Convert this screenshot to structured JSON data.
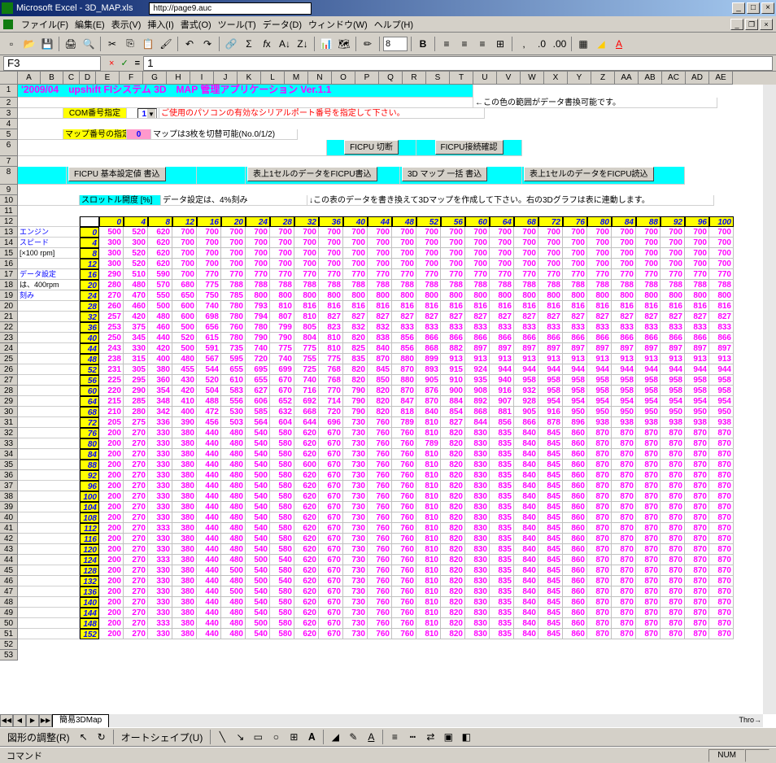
{
  "titlebar": {
    "app": "Microsoft Excel - 3D_MAP.xls",
    "url": "http://page9.auc"
  },
  "menubar": {
    "items": [
      "ファイル(F)",
      "編集(E)",
      "表示(V)",
      "挿入(I)",
      "書式(O)",
      "ツール(T)",
      "データ(D)",
      "ウィンドウ(W)",
      "ヘルプ(H)"
    ]
  },
  "formula": {
    "cell_ref": "F3",
    "value": "1"
  },
  "font_size": "8",
  "columns": [
    "A",
    "B",
    "C",
    "D",
    "E",
    "F",
    "G",
    "H",
    "I",
    "J",
    "K",
    "L",
    "M",
    "N",
    "O",
    "P",
    "Q",
    "R",
    "S",
    "T",
    "U",
    "V",
    "W",
    "X",
    "Y",
    "Z",
    "AA",
    "AB",
    "AC",
    "AD",
    "AE"
  ],
  "title_row": "'2009/04　upshift FIシステム 3D　MAP 管理アプリケーション Ver.1.1",
  "settings": {
    "com_label": "COM番号指定",
    "com_value": "1",
    "com_note": "ご使用のパソコンの有効なシリアルポート番号を指定して下さい。",
    "right_note": "←この色の範囲がデータ書換可能です。",
    "map_label": "マップ番号の指定",
    "map_value": "0",
    "map_note": "マップは3枚を切替可能(No.0/1/2)"
  },
  "buttons": {
    "cpu_disconnect": "FICPU 切断",
    "cpu_connect": "FICPU接続確認",
    "basic_write": "FICPU 基本設定値 書込",
    "cell_write": "表上1セルのデータをFICPU書込",
    "map_write": "3D マップ 一括 書込",
    "cell_read": "表上1セルのデータをFICPU読込"
  },
  "throttle_label": "スロットル開度 [%]",
  "data_note": "データ設定は、4%刻み",
  "table_note": "↓この表のデータを書き換えて3Dマップを作成して下さい。右の3Dグラフは表に連動します。",
  "throttle_header": "Thro→",
  "side_labels": [
    "エンジン",
    "スピード",
    "[×100 rpm]",
    "",
    "データ設定",
    "は、400rpm",
    "刻み"
  ],
  "col_widths": {
    "row_header": 22,
    "ab": 48,
    "d": 16,
    "data": 25
  },
  "throttle_values": [
    0,
    4,
    8,
    12,
    16,
    20,
    24,
    28,
    32,
    36,
    40,
    44,
    48,
    52,
    56,
    60,
    64,
    68,
    72,
    76,
    80,
    84,
    88,
    92,
    96,
    100
  ],
  "rpm_values": [
    0,
    4,
    8,
    12,
    16,
    20,
    24,
    28,
    32,
    36,
    40,
    44,
    48,
    52,
    56,
    60,
    64,
    68,
    72,
    76,
    80,
    84,
    88,
    92,
    96,
    100,
    104,
    108,
    112,
    116,
    120,
    124,
    128,
    132,
    136,
    140,
    144,
    148,
    152
  ],
  "data_rows": [
    [
      500,
      520,
      620,
      700,
      700,
      700,
      700,
      700,
      700,
      700,
      700,
      700,
      700,
      700,
      700,
      700,
      700,
      700,
      700,
      700,
      700,
      700,
      700,
      700,
      700,
      700
    ],
    [
      300,
      300,
      620,
      700,
      700,
      700,
      700,
      700,
      700,
      700,
      700,
      700,
      700,
      700,
      700,
      700,
      700,
      700,
      700,
      700,
      700,
      700,
      700,
      700,
      700,
      700
    ],
    [
      300,
      520,
      620,
      700,
      700,
      700,
      700,
      700,
      700,
      700,
      700,
      700,
      700,
      700,
      700,
      700,
      700,
      700,
      700,
      700,
      700,
      700,
      700,
      700,
      700,
      700
    ],
    [
      300,
      520,
      620,
      700,
      700,
      700,
      700,
      700,
      700,
      700,
      700,
      700,
      700,
      700,
      700,
      700,
      700,
      700,
      700,
      700,
      700,
      700,
      700,
      700,
      700,
      700
    ],
    [
      290,
      510,
      590,
      700,
      770,
      770,
      770,
      770,
      770,
      770,
      770,
      770,
      770,
      770,
      770,
      770,
      770,
      770,
      770,
      770,
      770,
      770,
      770,
      770,
      770,
      770
    ],
    [
      280,
      480,
      570,
      680,
      775,
      788,
      788,
      788,
      788,
      788,
      788,
      788,
      788,
      788,
      788,
      788,
      788,
      788,
      788,
      788,
      788,
      788,
      788,
      788,
      788,
      788
    ],
    [
      270,
      470,
      550,
      650,
      750,
      785,
      800,
      800,
      800,
      800,
      800,
      800,
      800,
      800,
      800,
      800,
      800,
      800,
      800,
      800,
      800,
      800,
      800,
      800,
      800,
      800
    ],
    [
      260,
      460,
      500,
      600,
      740,
      780,
      793,
      810,
      816,
      816,
      816,
      816,
      816,
      816,
      816,
      816,
      816,
      816,
      816,
      816,
      816,
      816,
      816,
      816,
      816,
      816
    ],
    [
      257,
      420,
      480,
      600,
      698,
      780,
      794,
      807,
      810,
      827,
      827,
      827,
      827,
      827,
      827,
      827,
      827,
      827,
      827,
      827,
      827,
      827,
      827,
      827,
      827,
      827
    ],
    [
      253,
      375,
      460,
      500,
      656,
      760,
      780,
      799,
      805,
      823,
      832,
      832,
      833,
      833,
      833,
      833,
      833,
      833,
      833,
      833,
      833,
      833,
      833,
      833,
      833,
      833
    ],
    [
      250,
      345,
      440,
      520,
      615,
      780,
      790,
      790,
      804,
      810,
      820,
      838,
      856,
      866,
      866,
      866,
      866,
      866,
      866,
      866,
      866,
      866,
      866,
      866,
      866,
      866
    ],
    [
      243,
      330,
      420,
      500,
      591,
      735,
      740,
      775,
      775,
      810,
      825,
      840,
      856,
      868,
      882,
      897,
      897,
      897,
      897,
      897,
      897,
      897,
      897,
      897,
      897,
      897
    ],
    [
      238,
      315,
      400,
      480,
      567,
      595,
      720,
      740,
      755,
      775,
      835,
      870,
      880,
      899,
      913,
      913,
      913,
      913,
      913,
      913,
      913,
      913,
      913,
      913,
      913,
      913
    ],
    [
      231,
      305,
      380,
      455,
      544,
      655,
      695,
      699,
      725,
      768,
      820,
      845,
      870,
      893,
      915,
      924,
      944,
      944,
      944,
      944,
      944,
      944,
      944,
      944,
      944,
      944
    ],
    [
      225,
      295,
      360,
      430,
      520,
      610,
      655,
      670,
      740,
      768,
      820,
      850,
      880,
      905,
      910,
      935,
      940,
      958,
      958,
      958,
      958,
      958,
      958,
      958,
      958,
      958
    ],
    [
      220,
      290,
      354,
      420,
      504,
      583,
      627,
      670,
      716,
      770,
      790,
      820,
      870,
      876,
      900,
      908,
      916,
      932,
      958,
      958,
      958,
      958,
      958,
      958,
      958,
      958
    ],
    [
      215,
      285,
      348,
      410,
      488,
      556,
      606,
      652,
      692,
      714,
      790,
      820,
      847,
      870,
      884,
      892,
      907,
      928,
      954,
      954,
      954,
      954,
      954,
      954,
      954,
      954
    ],
    [
      210,
      280,
      342,
      400,
      472,
      530,
      585,
      632,
      668,
      720,
      790,
      820,
      818,
      840,
      854,
      868,
      881,
      905,
      916,
      950,
      950,
      950,
      950,
      950,
      950,
      950
    ],
    [
      205,
      275,
      336,
      390,
      456,
      503,
      564,
      604,
      644,
      696,
      730,
      760,
      789,
      810,
      827,
      844,
      856,
      866,
      878,
      896,
      938,
      938,
      938,
      938,
      938,
      938
    ],
    [
      200,
      270,
      330,
      380,
      440,
      480,
      540,
      580,
      620,
      670,
      730,
      760,
      760,
      810,
      820,
      830,
      835,
      840,
      845,
      860,
      870,
      870,
      870,
      870,
      870,
      870
    ],
    [
      200,
      270,
      330,
      380,
      440,
      480,
      540,
      580,
      620,
      670,
      730,
      760,
      760,
      789,
      820,
      830,
      835,
      840,
      845,
      860,
      870,
      870,
      870,
      870,
      870,
      870
    ],
    [
      200,
      270,
      330,
      380,
      440,
      480,
      540,
      580,
      620,
      670,
      730,
      760,
      760,
      810,
      820,
      830,
      835,
      840,
      845,
      860,
      870,
      870,
      870,
      870,
      870,
      870
    ],
    [
      200,
      270,
      330,
      380,
      440,
      480,
      540,
      580,
      600,
      670,
      730,
      760,
      760,
      810,
      820,
      830,
      835,
      840,
      845,
      860,
      870,
      870,
      870,
      870,
      870,
      870
    ],
    [
      200,
      270,
      330,
      380,
      440,
      480,
      500,
      580,
      620,
      670,
      730,
      760,
      760,
      810,
      820,
      830,
      835,
      840,
      845,
      860,
      870,
      870,
      870,
      870,
      870,
      870
    ],
    [
      200,
      270,
      330,
      380,
      440,
      480,
      540,
      580,
      620,
      670,
      730,
      760,
      760,
      810,
      820,
      830,
      835,
      840,
      845,
      860,
      870,
      870,
      870,
      870,
      870,
      870
    ],
    [
      200,
      270,
      330,
      380,
      440,
      480,
      540,
      580,
      620,
      670,
      730,
      760,
      760,
      810,
      820,
      830,
      835,
      840,
      845,
      860,
      870,
      870,
      870,
      870,
      870,
      870
    ],
    [
      200,
      270,
      330,
      380,
      440,
      480,
      540,
      580,
      620,
      670,
      730,
      760,
      760,
      810,
      820,
      830,
      835,
      840,
      845,
      860,
      870,
      870,
      870,
      870,
      870,
      870
    ],
    [
      200,
      270,
      330,
      380,
      440,
      480,
      540,
      580,
      620,
      670,
      730,
      760,
      760,
      810,
      820,
      830,
      835,
      840,
      845,
      860,
      870,
      870,
      870,
      870,
      870,
      870
    ],
    [
      200,
      270,
      333,
      380,
      440,
      480,
      540,
      580,
      620,
      670,
      730,
      760,
      760,
      810,
      820,
      830,
      835,
      840,
      845,
      860,
      870,
      870,
      870,
      870,
      870,
      870
    ],
    [
      200,
      270,
      330,
      380,
      440,
      480,
      540,
      580,
      620,
      670,
      730,
      760,
      760,
      810,
      820,
      830,
      835,
      840,
      845,
      860,
      870,
      870,
      870,
      870,
      870,
      870
    ],
    [
      200,
      270,
      330,
      380,
      440,
      480,
      540,
      580,
      620,
      670,
      730,
      760,
      760,
      810,
      820,
      830,
      835,
      840,
      845,
      860,
      870,
      870,
      870,
      870,
      870,
      870
    ],
    [
      200,
      270,
      333,
      380,
      440,
      480,
      500,
      540,
      620,
      670,
      730,
      760,
      760,
      810,
      820,
      830,
      835,
      840,
      845,
      860,
      870,
      870,
      870,
      870,
      870,
      870
    ],
    [
      200,
      270,
      330,
      380,
      440,
      500,
      540,
      580,
      620,
      670,
      730,
      760,
      760,
      810,
      820,
      830,
      835,
      840,
      845,
      860,
      870,
      870,
      870,
      870,
      870,
      870
    ],
    [
      200,
      270,
      330,
      380,
      440,
      480,
      500,
      540,
      620,
      670,
      730,
      760,
      760,
      810,
      820,
      830,
      835,
      840,
      845,
      860,
      870,
      870,
      870,
      870,
      870,
      870
    ],
    [
      200,
      270,
      330,
      380,
      440,
      500,
      540,
      580,
      620,
      670,
      730,
      760,
      760,
      810,
      820,
      830,
      835,
      840,
      845,
      860,
      870,
      870,
      870,
      870,
      870,
      870
    ],
    [
      200,
      270,
      330,
      380,
      440,
      480,
      540,
      580,
      620,
      670,
      730,
      760,
      760,
      810,
      820,
      830,
      835,
      840,
      845,
      860,
      870,
      870,
      870,
      870,
      870,
      870
    ],
    [
      200,
      270,
      330,
      380,
      440,
      480,
      540,
      580,
      620,
      670,
      730,
      760,
      760,
      810,
      820,
      830,
      835,
      840,
      845,
      860,
      870,
      870,
      870,
      870,
      870,
      870
    ],
    [
      200,
      270,
      333,
      380,
      440,
      480,
      500,
      580,
      620,
      670,
      730,
      760,
      760,
      810,
      820,
      830,
      835,
      840,
      845,
      860,
      870,
      870,
      870,
      870,
      870,
      870
    ],
    [
      200,
      270,
      330,
      380,
      440,
      480,
      540,
      580,
      620,
      670,
      730,
      760,
      760,
      810,
      820,
      830,
      835,
      840,
      845,
      860,
      870,
      870,
      870,
      870,
      870,
      870
    ]
  ],
  "sheet_tab": "簡易3DMap",
  "drawing": {
    "adjust": "図形の調整(R)",
    "autoshape": "オートシェイプ(U)"
  },
  "status": {
    "mode": "コマンド",
    "num": "NUM"
  }
}
